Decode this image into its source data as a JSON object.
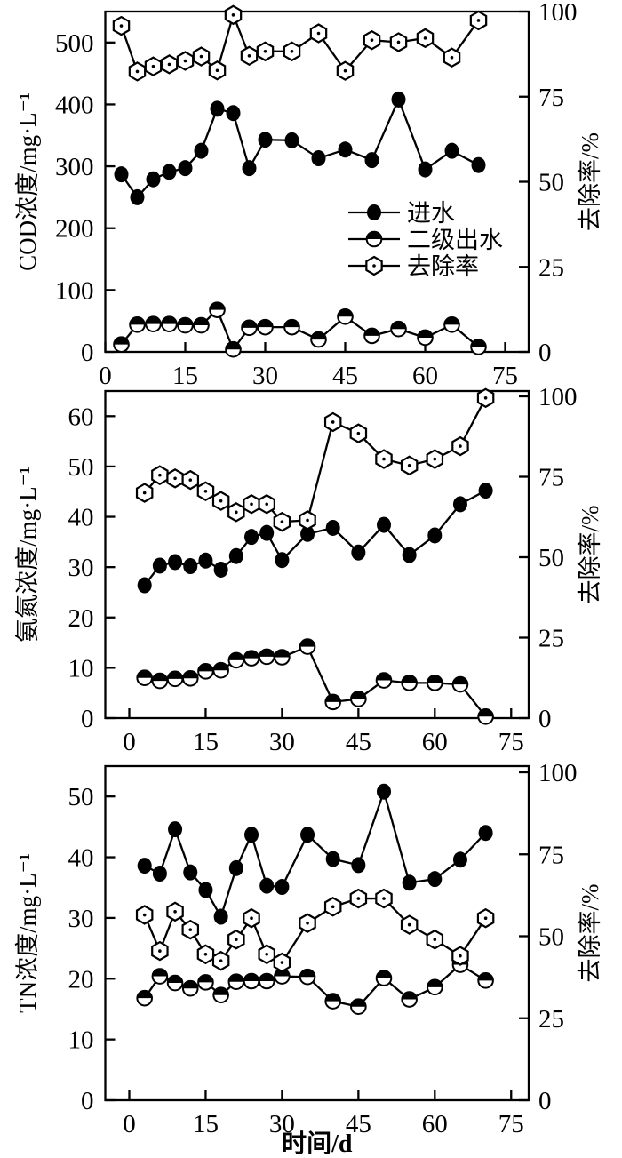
{
  "figure": {
    "background": "#ffffff",
    "ink_color": "#000000",
    "x_axis": {
      "label": "时间/d",
      "ticks": [
        0,
        15,
        30,
        45,
        60,
        75
      ]
    },
    "legend": {
      "items": [
        {
          "label": "进水",
          "marker": "filled-circle"
        },
        {
          "label": "二级出水",
          "marker": "half-filled-circle"
        },
        {
          "label": "去除率",
          "marker": "open-hexagon-dot"
        }
      ]
    }
  },
  "days": [
    3,
    6,
    9,
    12,
    15,
    18,
    21,
    24,
    27,
    30,
    35,
    40,
    45,
    50,
    55,
    60,
    65,
    70
  ],
  "chart_data": [
    {
      "id": "cod",
      "type": "line",
      "title": "",
      "xlabel": "",
      "ylabel": "COD浓度/mg·L⁻¹",
      "ylabel_right": "去除率/%",
      "ylim": [
        0,
        550
      ],
      "yticks": [
        0,
        100,
        200,
        300,
        400,
        500
      ],
      "ylim_right": [
        0,
        100
      ],
      "yticks_right": [
        0,
        25,
        50,
        75,
        100
      ],
      "xticks": [
        0,
        15,
        30,
        45,
        60,
        75
      ],
      "grid": false,
      "legend_position": "inside-right-middle",
      "series": [
        {
          "name": "进水",
          "axis": "left",
          "marker": "filled-circle",
          "values": [
            287,
            250,
            279,
            291,
            297,
            325,
            393,
            386,
            297,
            343,
            342,
            313,
            327,
            310,
            408,
            295,
            325,
            302
          ]
        },
        {
          "name": "二级出水",
          "axis": "left",
          "marker": "half-filled-circle",
          "values": [
            12,
            44,
            45,
            45,
            43,
            43,
            68,
            4,
            39,
            40,
            40,
            20,
            57,
            26,
            37,
            23,
            44,
            8
          ]
        },
        {
          "name": "去除率",
          "axis": "right",
          "marker": "open-hexagon-dot",
          "values": [
            95.8,
            82.4,
            83.9,
            84.5,
            85.5,
            86.8,
            82.7,
            99,
            87,
            88.3,
            88.3,
            93.6,
            82.6,
            91.6,
            91,
            92.2,
            86.5,
            97.4
          ]
        }
      ]
    },
    {
      "id": "nh3",
      "type": "line",
      "title": "",
      "xlabel": "",
      "ylabel": "氨氮浓度/mg·L⁻¹",
      "ylabel_right": "去除率/%",
      "ylim": [
        0,
        65
      ],
      "yticks": [
        0,
        10,
        20,
        30,
        40,
        50,
        60
      ],
      "ylim_right": [
        0,
        100
      ],
      "yticks_right": [
        0,
        25,
        50,
        75,
        100
      ],
      "xticks": [
        0,
        15,
        30,
        45,
        60,
        75
      ],
      "grid": false,
      "series": [
        {
          "name": "进水",
          "axis": "left",
          "marker": "filled-circle",
          "values": [
            26.4,
            30.3,
            31.0,
            30.2,
            31.3,
            29.5,
            32.2,
            36.0,
            36.8,
            31.4,
            36.6,
            37.8,
            32.9,
            38.4,
            32.4,
            36.3,
            42.5,
            45.2
          ]
        },
        {
          "name": "二级出水",
          "axis": "left",
          "marker": "half-filled-circle",
          "values": [
            8.0,
            7.4,
            7.8,
            7.9,
            9.3,
            9.5,
            11.5,
            11.9,
            12.2,
            12.1,
            14.2,
            3.2,
            3.8,
            7.5,
            7.0,
            7.0,
            6.7,
            0.3
          ]
        },
        {
          "name": "去除率",
          "axis": "right",
          "marker": "open-hexagon-dot",
          "values": [
            70,
            75.5,
            74.5,
            74,
            70.5,
            67.5,
            64,
            66.5,
            66.5,
            61,
            61.5,
            92,
            88.5,
            80.5,
            78.5,
            80.5,
            84.5,
            99.5
          ]
        }
      ]
    },
    {
      "id": "tn",
      "type": "line",
      "title": "",
      "xlabel": "时间/d",
      "ylabel": "TN浓度/mg·L⁻¹",
      "ylabel_right": "去除率/%",
      "ylim": [
        0,
        55
      ],
      "yticks": [
        0,
        10,
        20,
        30,
        40,
        50
      ],
      "ylim_right": [
        0,
        100
      ],
      "yticks_right": [
        0,
        25,
        50,
        75,
        100
      ],
      "xticks": [
        0,
        15,
        30,
        45,
        60,
        75
      ],
      "grid": false,
      "series": [
        {
          "name": "进水",
          "axis": "left",
          "marker": "filled-circle",
          "values": [
            38.6,
            37.3,
            44.6,
            37.5,
            34.6,
            30.2,
            38.2,
            43.7,
            35.3,
            35.1,
            43.7,
            39.7,
            38.7,
            50.8,
            35.8,
            36.4,
            39.6,
            44.0
          ]
        },
        {
          "name": "二级出水",
          "axis": "left",
          "marker": "half-filled-circle",
          "values": [
            16.8,
            20.4,
            19.3,
            18.4,
            19.4,
            17.3,
            19.5,
            19.6,
            19.6,
            20.4,
            20.3,
            16.3,
            15.4,
            20.1,
            16.6,
            18.6,
            22.3,
            19.7
          ]
        },
        {
          "name": "去除率",
          "axis": "right",
          "marker": "open-hexagon-dot",
          "values": [
            56.5,
            45.5,
            57.5,
            52,
            44.5,
            42.5,
            49,
            55.5,
            44.5,
            42,
            54,
            59,
            61.5,
            61.5,
            53.5,
            49,
            44,
            55.5
          ]
        }
      ]
    }
  ]
}
